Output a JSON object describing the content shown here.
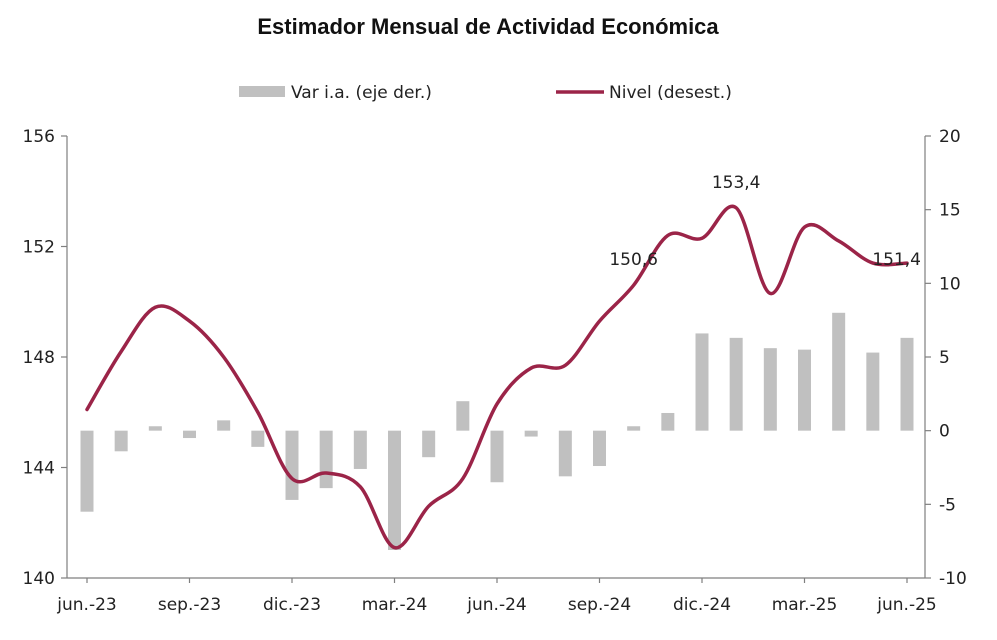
{
  "chart_data": {
    "type": "bar+line",
    "title": "Estimador Mensual de Actividad Económica",
    "colors": {
      "bars": "#c0c0c0",
      "line": "#9b2448",
      "axis": "#7f7f7f"
    },
    "legend": {
      "placement": "top",
      "items": [
        {
          "label": "Var i.a. (eje der.)",
          "kind": "bar"
        },
        {
          "label": "Nivel (desest.)",
          "kind": "line"
        }
      ]
    },
    "x_tick_labels": [
      "jun.-23",
      "sep.-23",
      "dic.-23",
      "mar.-24",
      "jun.-24",
      "sep.-24",
      "dic.-24",
      "mar.-25",
      "jun.-25"
    ],
    "x_tick_indices": [
      0,
      3,
      6,
      9,
      12,
      15,
      18,
      21,
      24
    ],
    "left_axis": {
      "ylim": [
        140,
        156
      ],
      "ticks": [
        "156",
        "152",
        "148",
        "144",
        "140"
      ],
      "tick_values": [
        156,
        152,
        148,
        144,
        140
      ]
    },
    "right_axis": {
      "ylim": [
        -10,
        20
      ],
      "ticks": [
        "20",
        "15",
        "10",
        "5",
        "0",
        "-5",
        "-10"
      ],
      "tick_values": [
        20,
        15,
        10,
        5,
        0,
        -5,
        -10
      ]
    },
    "months": [
      "jun.-23",
      "jul.-23",
      "ago.-23",
      "sep.-23",
      "oct.-23",
      "nov.-23",
      "dic.-23",
      "ene.-24",
      "feb.-24",
      "mar.-24",
      "abr.-24",
      "may.-24",
      "jun.-24",
      "jul.-24",
      "ago.-24",
      "sep.-24",
      "oct.-24",
      "nov.-24",
      "dic.-24",
      "ene.-25",
      "feb.-25",
      "mar.-25",
      "abr.-25",
      "may.-25",
      "jun.-25"
    ],
    "series": [
      {
        "name": "Var i.a. (eje der.)",
        "axis": "right",
        "type": "bar",
        "values": [
          -5.5,
          -1.4,
          0.3,
          -0.5,
          0.7,
          -1.1,
          -4.7,
          -3.9,
          -2.6,
          -8.1,
          -1.8,
          2.0,
          -3.5,
          -0.4,
          -3.1,
          -2.4,
          0.3,
          1.2,
          6.6,
          6.3,
          5.6,
          5.5,
          8.0,
          5.3,
          6.3
        ]
      },
      {
        "name": "Nivel (desest.)",
        "axis": "left",
        "type": "line",
        "values": [
          146.1,
          148.2,
          149.8,
          149.3,
          148.0,
          146.0,
          143.6,
          143.8,
          143.3,
          141.1,
          142.6,
          143.6,
          146.3,
          147.6,
          147.7,
          149.3,
          150.6,
          152.4,
          152.3,
          153.4,
          150.3,
          152.7,
          152.2,
          151.4,
          151.4
        ],
        "annotations": [
          {
            "label": "150,6",
            "index": 16,
            "value": 150.6
          },
          {
            "label": "153,4",
            "index": 19,
            "value": 153.4
          },
          {
            "label": "151,4",
            "index": 24,
            "value": 151.4
          }
        ]
      }
    ]
  }
}
